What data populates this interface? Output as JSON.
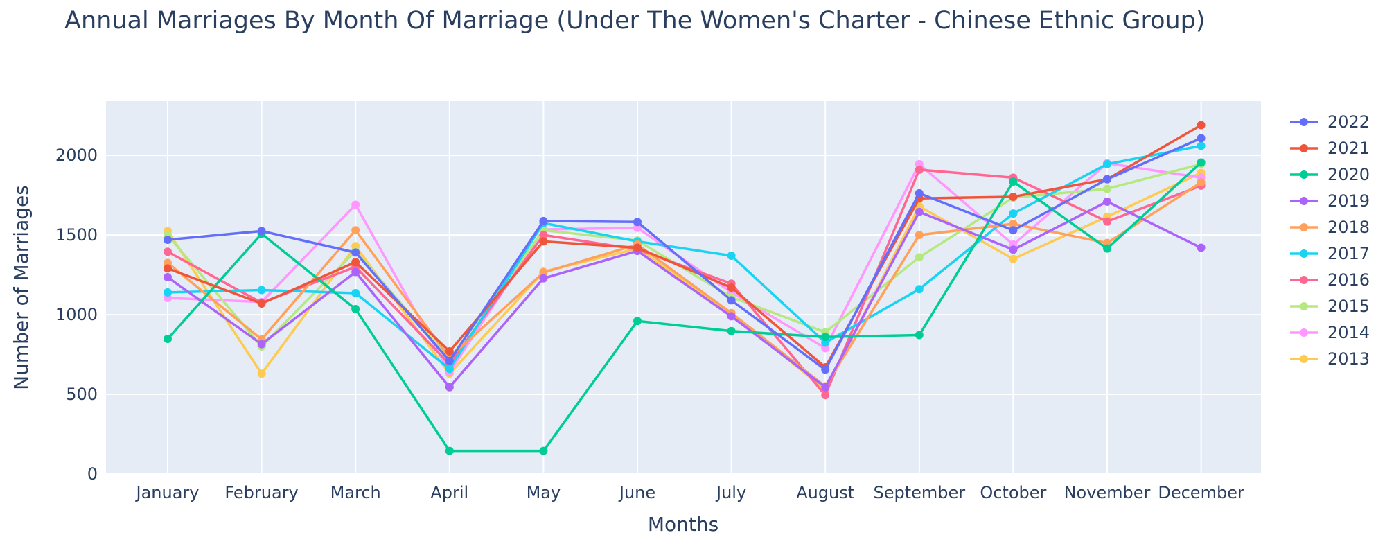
{
  "chart_data": {
    "type": "line",
    "title": "Annual Marriages By Month Of Marriage (Under The Women's Charter - Chinese Ethnic Group)",
    "xlabel": "Months",
    "ylabel": "Number of Marriages",
    "ylim": [
      0,
      2340
    ],
    "yticks": [
      0,
      500,
      1000,
      1500,
      2000
    ],
    "grid": true,
    "legend_position": "right",
    "categories": [
      "January",
      "February",
      "March",
      "April",
      "May",
      "June",
      "July",
      "August",
      "September",
      "October",
      "November",
      "December"
    ],
    "series": [
      {
        "name": "2022",
        "color": "#636efa",
        "values": [
          1470,
          1525,
          1390,
          710,
          1588,
          1582,
          1090,
          655,
          1762,
          1530,
          1850,
          2108
        ]
      },
      {
        "name": "2021",
        "color": "#ef553b",
        "values": [
          1290,
          1070,
          1330,
          770,
          1460,
          1420,
          1170,
          670,
          1730,
          1740,
          1850,
          2190
        ]
      },
      {
        "name": "2020",
        "color": "#00cc96",
        "values": [
          848,
          1508,
          1035,
          145,
          145,
          960,
          897,
          860,
          872,
          1835,
          1415,
          1955
        ]
      },
      {
        "name": "2019",
        "color": "#ab63fa",
        "values": [
          1235,
          815,
          1268,
          545,
          1228,
          1400,
          990,
          545,
          1645,
          1408,
          1710,
          1420
        ]
      },
      {
        "name": "2018",
        "color": "#ffa15a",
        "values": [
          1325,
          845,
          1530,
          730,
          1265,
          1440,
          1010,
          550,
          1500,
          1570,
          1450,
          1830
        ]
      },
      {
        "name": "2017",
        "color": "#19d3f3",
        "values": [
          1140,
          1155,
          1135,
          660,
          1575,
          1460,
          1370,
          825,
          1160,
          1635,
          1945,
          2060
        ]
      },
      {
        "name": "2016",
        "color": "#ff6692",
        "values": [
          1395,
          1075,
          1300,
          690,
          1500,
          1410,
          1195,
          495,
          1910,
          1860,
          1585,
          1810
        ]
      },
      {
        "name": "2015",
        "color": "#b6e880",
        "values": [
          1500,
          800,
          1400,
          720,
          1530,
          1465,
          1110,
          890,
          1360,
          1735,
          1790,
          1945
        ]
      },
      {
        "name": "2014",
        "color": "#ff97ff",
        "values": [
          1105,
          1080,
          1690,
          640,
          1535,
          1545,
          1140,
          790,
          1945,
          1440,
          1950,
          1860
        ]
      },
      {
        "name": "2013",
        "color": "#fecb52",
        "values": [
          1525,
          630,
          1430,
          630,
          1270,
          1415,
          1005,
          530,
          1680,
          1350,
          1615,
          1890
        ]
      }
    ]
  }
}
